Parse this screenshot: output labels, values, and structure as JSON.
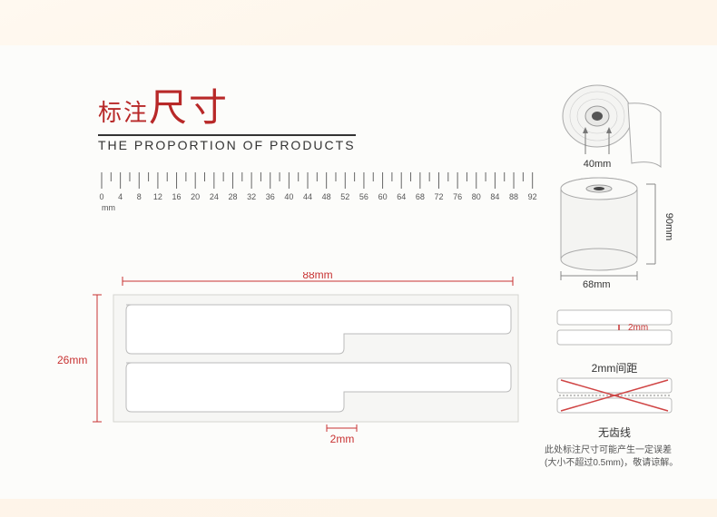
{
  "title": {
    "cn_small": "标注",
    "cn_big": "尺寸",
    "en": "THE PROPORTION OF PRODUCTS"
  },
  "ruler": {
    "start": 0,
    "end": 92,
    "major_step": 4,
    "minor_step": 2,
    "unit": "mm",
    "tick_color": "#666",
    "label_fontsize": 9
  },
  "label_diagram": {
    "width_mm": "88mm",
    "height_mm": "26mm",
    "gap_mm": "2mm",
    "outer_width": 450,
    "outer_height": 145,
    "bg_color": "#f9f9f7",
    "border_color": "#ccc",
    "dim_color": "#c83232"
  },
  "roll": {
    "core_label": "40mm",
    "width_label": "68mm",
    "height_label": "90mm",
    "stroke": "#888",
    "fill": "#f0f0ee"
  },
  "gap": {
    "value": "2mm",
    "caption": "2mm间距"
  },
  "no_tooth": {
    "caption": "无齿线",
    "x_color": "#d04545"
  },
  "note": {
    "line1": "此处标注尺寸可能产生一定误差",
    "line2": "(大小不超过0.5mm)，敬请谅解。"
  },
  "colors": {
    "red": "#c83232",
    "title_red": "#b82828",
    "text": "#333"
  }
}
